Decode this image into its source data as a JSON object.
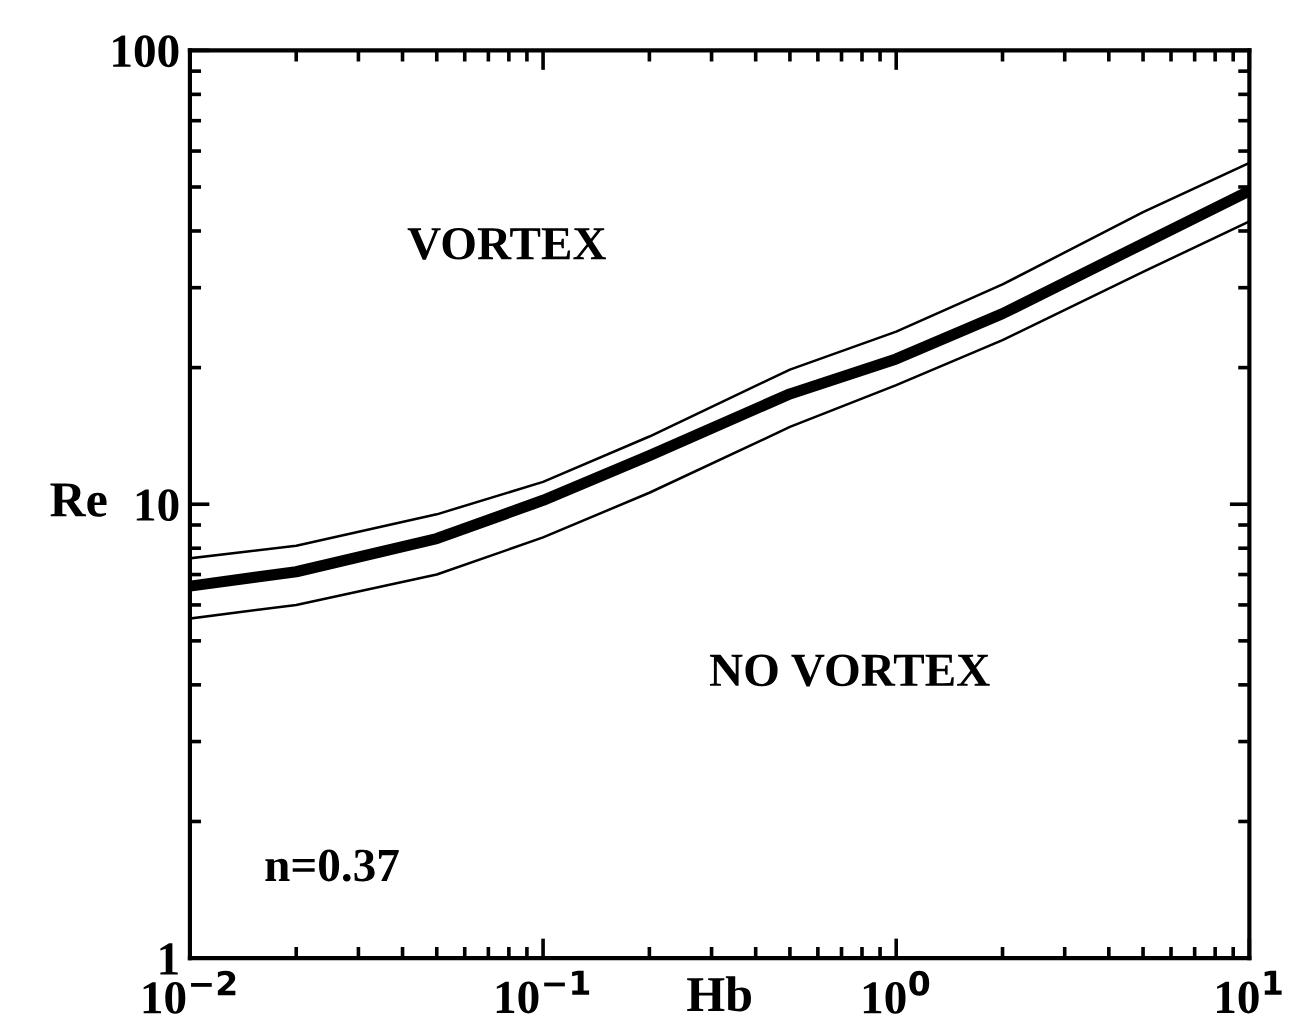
{
  "chart_data": {
    "type": "line",
    "xlabel": "Hb",
    "ylabel": "Re",
    "log": "xy",
    "xlim": [
      0.01,
      10
    ],
    "ylim": [
      1,
      100
    ],
    "xticks": [
      {
        "value": 0.01,
        "label": "10$^{−2}$"
      },
      {
        "value": 0.1,
        "label": "10$^{−1}$"
      },
      {
        "value": 1,
        "label": "10$^{0}$"
      },
      {
        "value": 10,
        "label": "10$^{1}$"
      }
    ],
    "yticks": [
      1,
      10,
      100
    ],
    "grid": false,
    "legend": false,
    "marker": "none",
    "line_style": "solid",
    "x": [
      0.01,
      0.02,
      0.05,
      0.1,
      0.2,
      0.5,
      1,
      2,
      5,
      10
    ],
    "series": [
      {
        "color": "#000000",
        "values": [
          6.6,
          7.1,
          8.4,
          10.2,
          12.8,
          17.5,
          20.9,
          26.3,
          37.5,
          49
        ]
      },
      {
        "color": "#000000",
        "values": [
          7.6,
          8.1,
          9.5,
          11.2,
          14.1,
          19.8,
          24,
          30.5,
          44,
          56.5
        ]
      },
      {
        "color": "#000000",
        "values": [
          5.6,
          6.0,
          7.0,
          8.45,
          10.6,
          14.8,
          18.3,
          23,
          32.5,
          42
        ]
      }
    ],
    "annotations": [
      "VORTEX",
      "NO VORTEX",
      "n=0.37"
    ]
  }
}
